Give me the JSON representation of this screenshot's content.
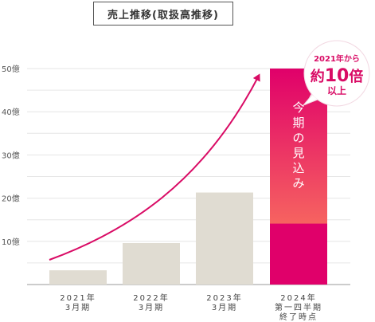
{
  "chart_data": {
    "type": "bar",
    "title": "売上推移(取扱高推移)",
    "y_unit_suffix": "億",
    "y_ticks": [
      10,
      20,
      30,
      40,
      50
    ],
    "ylim": [
      0,
      50
    ],
    "categories": [
      [
        "2021年",
        "3月期"
      ],
      [
        "2022年",
        "3月期"
      ],
      [
        "2023年",
        "3月期"
      ],
      [
        "2024年",
        "第一四半期",
        "終了時点"
      ]
    ],
    "values": [
      3.3,
      9.6,
      21.3,
      14.1
    ],
    "projection": {
      "category_index": 3,
      "value": 50,
      "label": "今期の見込み"
    },
    "callout": {
      "line1": "2021年から",
      "line2_prefix": "約",
      "line2_number": "10",
      "line2_suffix": "倍",
      "line3": "以上"
    },
    "colors": {
      "bar": "#e0dcd2",
      "actual_highlight": "#e0006a",
      "projection_top": "#e0006a",
      "projection_bottom": "#ff8a5c",
      "arrow": "#d90b65",
      "grid": "#e6e6e6",
      "axis": "#999999"
    }
  }
}
